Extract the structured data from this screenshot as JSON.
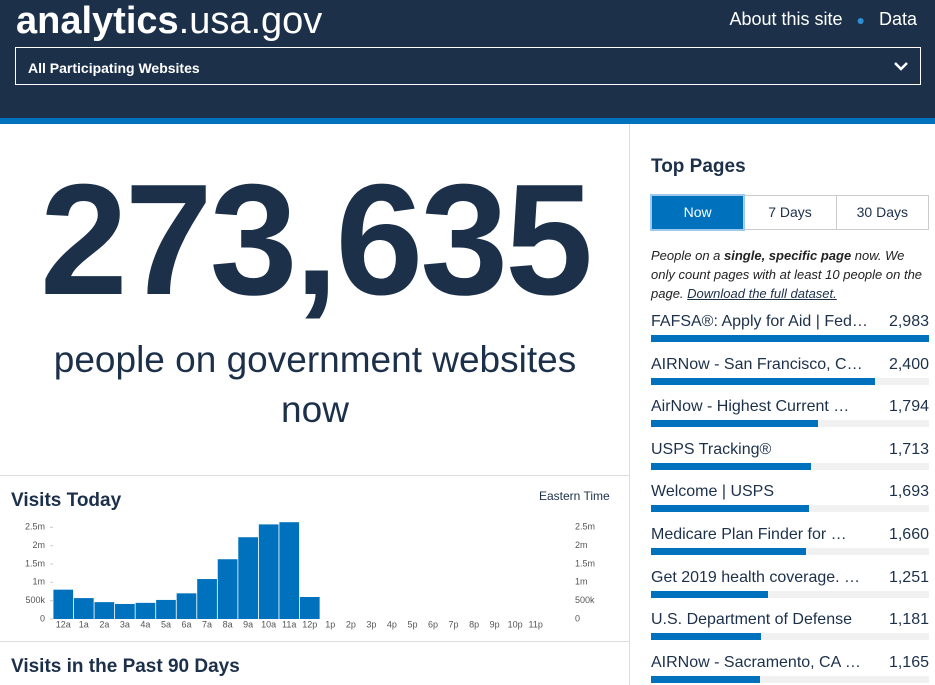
{
  "header": {
    "brand_bold": "analytics",
    "brand_light": ".usa.gov",
    "nav": [
      "About this site",
      "Data"
    ],
    "dropdown": "All Participating Websites"
  },
  "hero": {
    "number": "273,635",
    "caption": "people on government websites now"
  },
  "visits_today": {
    "title": "Visits Today",
    "timezone": "Eastern Time",
    "chart_data": {
      "type": "bar",
      "categories": [
        "12a",
        "1a",
        "2a",
        "3a",
        "4a",
        "5a",
        "6a",
        "7a",
        "8a",
        "9a",
        "10a",
        "11a",
        "12p",
        "1p",
        "2p",
        "3p",
        "4p",
        "5p",
        "6p",
        "7p",
        "8p",
        "9p",
        "10p",
        "11p"
      ],
      "values": [
        800000,
        570000,
        460000,
        410000,
        440000,
        520000,
        700000,
        1090000,
        1630000,
        2230000,
        2580000,
        2640000,
        600000,
        null,
        null,
        null,
        null,
        null,
        null,
        null,
        null,
        null,
        null,
        null
      ],
      "color": "#0071bc",
      "ylim": [
        0,
        2700000
      ],
      "yticks": [
        0,
        {
          "value": 500000,
          "label": "500k"
        },
        {
          "value": 1000000,
          "label": "1m"
        },
        {
          "value": 1500000,
          "label": "1.5m"
        },
        {
          "value": 2000000,
          "label": "2m"
        },
        {
          "value": 2500000,
          "label": "2.5m"
        }
      ]
    }
  },
  "visits_90_days": {
    "title": "Visits in the Past 90 Days"
  },
  "top_pages": {
    "title": "Top Pages",
    "tabs": [
      "Now",
      "7 Days",
      "30 Days"
    ],
    "active_tab": 0,
    "description": {
      "before": "People on a ",
      "bold": "single, specific page",
      "after": " now. We only count pages with at least 10 people on the page. ",
      "link": "Download the full dataset."
    },
    "color": "#0071bc",
    "items": [
      {
        "name": "FAFSA®: Apply for Aid | Fed…",
        "value": 2983,
        "value_label": "2,983"
      },
      {
        "name": "AIRNow - San Francisco, C…",
        "value": 2400,
        "value_label": "2,400"
      },
      {
        "name": "AirNow - Highest Current …",
        "value": 1794,
        "value_label": "1,794"
      },
      {
        "name": "USPS Tracking®",
        "value": 1713,
        "value_label": "1,713"
      },
      {
        "name": "Welcome | USPS",
        "value": 1693,
        "value_label": "1,693"
      },
      {
        "name": "Medicare Plan Finder for …",
        "value": 1660,
        "value_label": "1,660"
      },
      {
        "name": "Get 2019 health coverage. …",
        "value": 1251,
        "value_label": "1,251"
      },
      {
        "name": "U.S. Department of Defense",
        "value": 1181,
        "value_label": "1,181"
      },
      {
        "name": "AIRNow - Sacramento, CA …",
        "value": 1165,
        "value_label": "1,165"
      }
    ]
  }
}
